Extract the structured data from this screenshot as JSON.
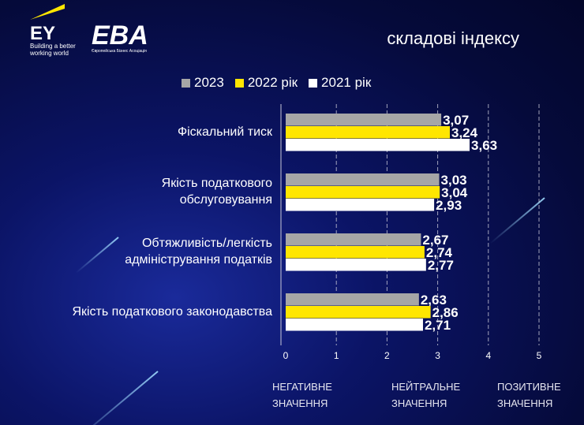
{
  "header": {
    "title": "складові індексу",
    "ey_logo": "EY",
    "ey_tagline": "Building a better working world",
    "eba_logo": "EBA",
    "eba_tagline": "Європейська Бізнес Асоціація"
  },
  "chart_data": {
    "type": "bar",
    "orientation": "horizontal",
    "categories": [
      "Фіскальний тиск",
      "Якість податкового обслуговування",
      "Обтяжливість/легкість адміністрування податків",
      "Якість податкового законодавства"
    ],
    "series": [
      {
        "name": "2023",
        "color": "#a6a6a6",
        "values": [
          3.07,
          3.03,
          2.67,
          2.63
        ],
        "labels": [
          "3,07",
          "3,03",
          "2,67",
          "2,63"
        ]
      },
      {
        "name": "2022 рік",
        "color": "#ffe600",
        "values": [
          3.24,
          3.04,
          2.74,
          2.86
        ],
        "labels": [
          "3,24",
          "3,04",
          "2,74",
          "2,86"
        ]
      },
      {
        "name": "2021 рік",
        "color": "#ffffff",
        "values": [
          3.63,
          2.93,
          2.77,
          2.71
        ],
        "labels": [
          "3,63",
          "2,93",
          "2,77",
          "2,71"
        ]
      }
    ],
    "xlim": [
      0,
      5
    ],
    "xticks": [
      "0",
      "1",
      "2",
      "3",
      "4",
      "5"
    ],
    "legend": "top",
    "grid": true
  },
  "labels": {
    "cat0": "Фіскальний тиск",
    "cat1a": "Якість податкового",
    "cat1b": "обслуговування",
    "cat2a": "Обтяжливість/легкість",
    "cat2b": "адміністрування податків",
    "cat3": "Якість податкового законодавства"
  },
  "scale_notes": [
    {
      "line1": "НЕГАТИВНЕ",
      "line2": "ЗНАЧЕННЯ"
    },
    {
      "line1": "НЕЙТРАЛЬНЕ",
      "line2": "ЗНАЧЕННЯ"
    },
    {
      "line1": "ПОЗИТИВНЕ",
      "line2": "ЗНАЧЕННЯ"
    }
  ]
}
